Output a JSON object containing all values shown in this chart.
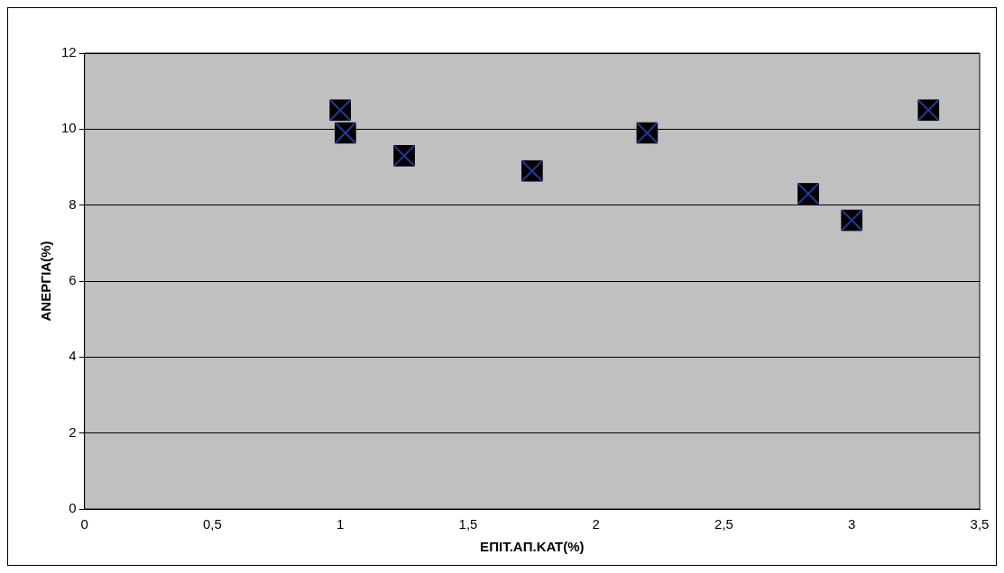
{
  "chart_data": {
    "type": "scatter",
    "xlabel": "ΕΠΙΤ.ΑΠ.ΚΑΤ(%)",
    "ylabel": "ΑΝΕΡΓΙΑ(%)",
    "x": [
      1.0,
      1.02,
      1.25,
      1.75,
      2.2,
      2.83,
      3.0,
      3.3
    ],
    "values": [
      10.5,
      9.9,
      9.3,
      8.9,
      9.9,
      8.3,
      7.6,
      10.5
    ],
    "color": "#000000",
    "marker": "square",
    "grid": "y",
    "legend": false,
    "xlim": [
      0,
      3.5
    ],
    "xticks": [
      0,
      {
        "value": 0.5,
        "label": "0,5"
      },
      1,
      {
        "value": 1.5,
        "label": "1,5"
      },
      2,
      {
        "value": 2.5,
        "label": "2,5"
      },
      3,
      {
        "value": 3.5,
        "label": "3,5"
      }
    ],
    "ylim": [
      0,
      12
    ],
    "yticks": [
      0,
      2,
      4,
      6,
      8,
      10,
      12
    ]
  }
}
